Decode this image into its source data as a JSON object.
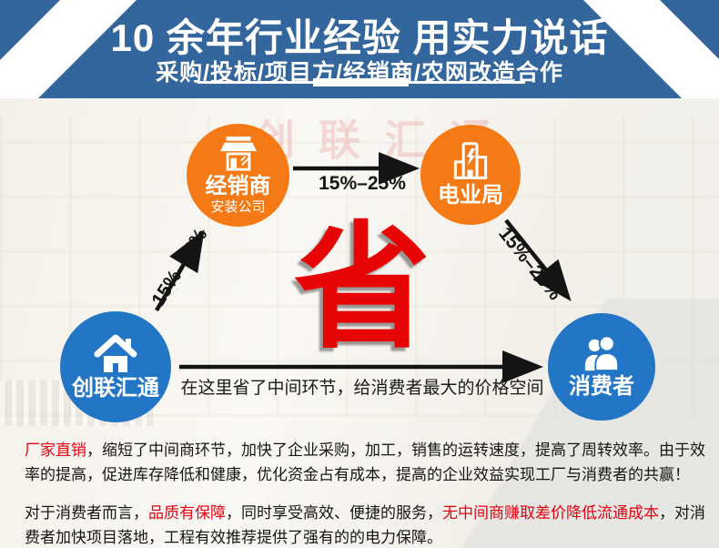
{
  "header": {
    "title": "10 余年行业经验 用实力说话",
    "subtitle": "采购/投标/项目方/经销商/农网改造合作"
  },
  "watermark": "创联汇通",
  "diagram": {
    "nodes": [
      {
        "id": "dealer",
        "label": "经销商",
        "sublabel": "安装公司",
        "icon": "storefront-icon",
        "color": "#f57a15"
      },
      {
        "id": "power-bureau",
        "label": "电业局",
        "sublabel": "",
        "icon": "power-building-icon",
        "color": "#f57a15"
      },
      {
        "id": "company",
        "label": "创联汇通",
        "sublabel": "",
        "icon": "house-icon",
        "color": "#2376c6"
      },
      {
        "id": "consumer",
        "label": "消费者",
        "sublabel": "",
        "icon": "people-icon",
        "color": "#2376c6"
      }
    ],
    "edges": [
      {
        "from": "company",
        "to": "dealer",
        "label": "15%–25%"
      },
      {
        "from": "dealer",
        "to": "power-bureau",
        "label": "15%–25%"
      },
      {
        "from": "power-bureau",
        "to": "consumer",
        "label": "15%–25%"
      },
      {
        "from": "company",
        "to": "consumer",
        "label": ""
      }
    ],
    "center_char": "省",
    "caption": "在这里省了中间环节，给消费者最大的价格空间"
  },
  "paragraphs": [
    {
      "segments": [
        {
          "text": "厂家直销",
          "highlight": true
        },
        {
          "text": "，缩短了中间商环节，加快了企业采购，加工，销售的运转速度，提高了周转效率。由于效率的提高，促进库存降低和健康，优化资金占有成本，提高的企业效益实现工厂与消费者的共赢！",
          "highlight": false
        }
      ]
    },
    {
      "segments": [
        {
          "text": "对于消费者而言，",
          "highlight": false
        },
        {
          "text": "品质有保障",
          "highlight": true
        },
        {
          "text": "，同时享受高效、便捷的服务，",
          "highlight": false
        },
        {
          "text": "无中间商赚取差价降低流通成本",
          "highlight": true
        },
        {
          "text": "，对消费者加快项目落地，工程有效推荐提供了强有的的电力保障。",
          "highlight": false
        }
      ]
    }
  ],
  "colors": {
    "header_blue": "#33669c",
    "circle_orange": "#f57a15",
    "circle_blue": "#2376c6",
    "accent_red": "#e60012",
    "save_char_red": "#e60404",
    "arrow_black": "#141414"
  }
}
